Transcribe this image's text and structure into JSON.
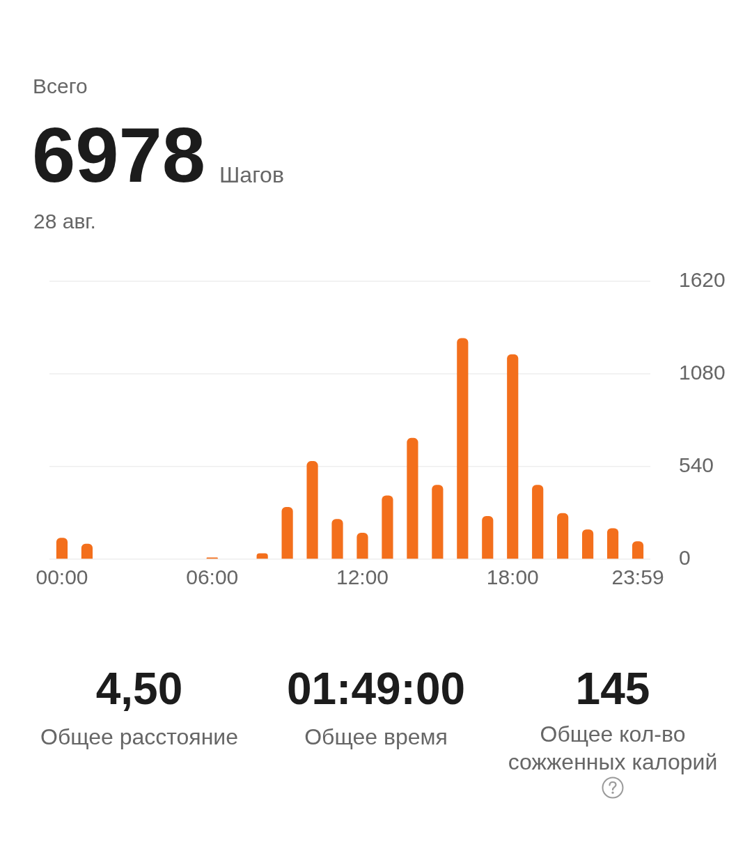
{
  "chart_data": [
    {
      "type": "bar",
      "title": "Всего",
      "subtitle": "28 авг.",
      "annotations": [
        "6978",
        "Шагов"
      ],
      "categories": [
        "00:00",
        null,
        null,
        null,
        null,
        null,
        "06:00",
        null,
        null,
        null,
        null,
        null,
        "12:00",
        null,
        null,
        null,
        null,
        null,
        "18:00",
        null,
        null,
        null,
        null,
        "23:59"
      ],
      "values": [
        125,
        90,
        0,
        0,
        0,
        0,
        10,
        0,
        35,
        305,
        572,
        234,
        154,
        372,
        707,
        433,
        1289,
        252,
        1195,
        433,
        269,
        174,
        181,
        105
      ],
      "color": "#f36f1c",
      "ylim": [
        0,
        1620
      ],
      "yticks": [
        0,
        540,
        1080,
        1620
      ],
      "grid": "y"
    },
    {
      "type": "other",
      "annotations": [
        "4,50",
        "Общее расстояние",
        "01:49:00",
        "Общее время",
        "145",
        "Общее кол-во сожженных калорий"
      ]
    }
  ]
}
